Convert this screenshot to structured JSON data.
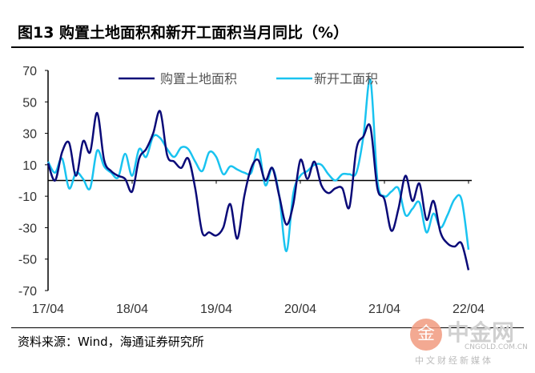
{
  "title": "图13 购置土地面积和新开工面积当月同比（%）",
  "source": "资料来源：Wind，海通证券研究所",
  "watermark": {
    "name": "中金网",
    "url": "CNGOLD.COM.CN",
    "slogan": "中文财经新媒体",
    "logo_glyph": "金"
  },
  "chart_data": {
    "type": "line",
    "title": "图13 购置土地面积和新开工面积当月同比（%）",
    "xlabel": "",
    "ylabel": "",
    "ylim": [
      -70,
      70
    ],
    "yticks": [
      70,
      50,
      30,
      10,
      -10,
      -30,
      -50,
      -70
    ],
    "xtick_labels": [
      "17/04",
      "18/04",
      "19/04",
      "20/04",
      "21/04",
      "22/04"
    ],
    "xtick_indices": [
      0,
      12,
      24,
      36,
      48,
      60
    ],
    "legend_position": "top",
    "grid": false,
    "series": [
      {
        "name": "购置土地面积",
        "color": "#0a0a78",
        "values": [
          11,
          0,
          18,
          24,
          3,
          25,
          18,
          43,
          13,
          6,
          3,
          1,
          -7,
          14,
          20,
          30,
          44,
          16,
          12,
          8,
          14,
          -5,
          -33,
          -33,
          -35,
          -30,
          -15,
          -37,
          -10,
          8,
          13,
          0,
          8,
          -10,
          -28,
          -15,
          13,
          1,
          12,
          -3,
          -8,
          -5,
          -5,
          -17,
          20,
          28,
          34,
          -5,
          -12,
          -32,
          -18,
          3,
          -13,
          -2,
          -25,
          -13,
          -33,
          -40,
          -42,
          -40,
          -57
        ]
      },
      {
        "name": "新开工面积",
        "color": "#19c3f0",
        "values": [
          12,
          5,
          14,
          -5,
          5,
          1,
          -5,
          19,
          9,
          5,
          2,
          17,
          3,
          20,
          15,
          28,
          27,
          20,
          15,
          21,
          20,
          12,
          6,
          18,
          15,
          4,
          9,
          7,
          5,
          5,
          20,
          -3,
          8,
          -10,
          -45,
          -8,
          3,
          6,
          10,
          10,
          4,
          0,
          4,
          4,
          5,
          28,
          64,
          0,
          -10,
          -7,
          -5,
          -22,
          -18,
          -14,
          -33,
          -21,
          -30,
          -22,
          -12,
          -12,
          -44
        ]
      }
    ]
  }
}
